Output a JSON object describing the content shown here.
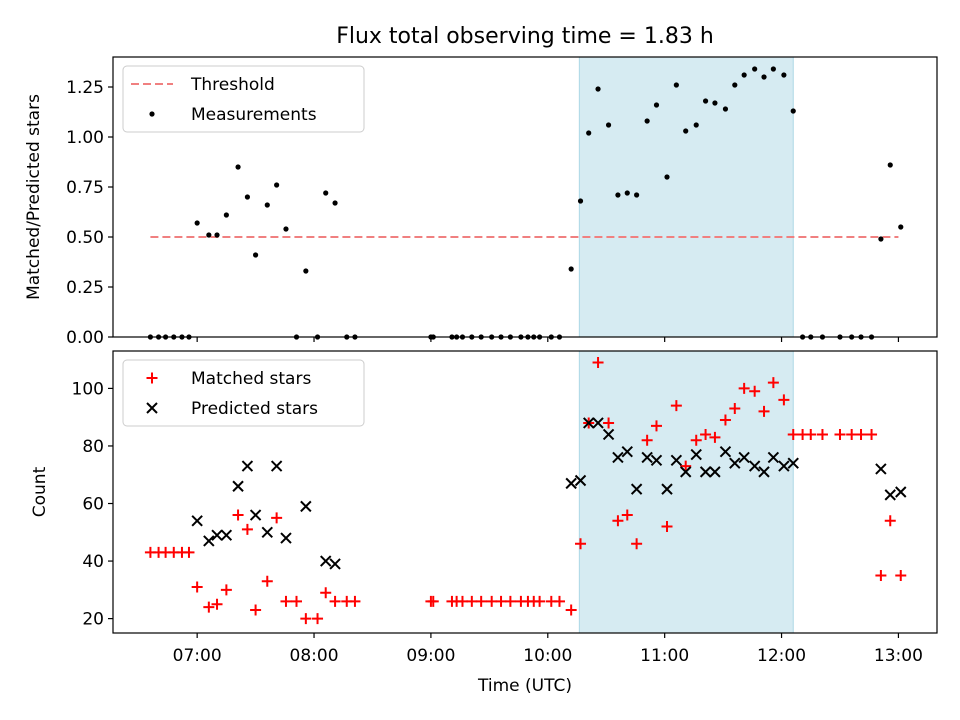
{
  "figure": {
    "title": "Flux total observing time = 1.83 h",
    "xlabel": "Time (UTC)"
  },
  "colors": {
    "threshold": "#f08080",
    "measurements": "#000000",
    "matched": "#ff0000",
    "predicted": "#000000",
    "shade": "#add8e6"
  },
  "chart_data": [
    {
      "type": "scatter",
      "ylabel": "Matched/Predicted stars",
      "xlim_hours": [
        6.28,
        13.33
      ],
      "ylim": [
        0,
        1.4
      ],
      "yticks": [
        0,
        0.25,
        0.5,
        0.75,
        1.0,
        1.25
      ],
      "ytick_labels": [
        "0.00",
        "0.25",
        "0.50",
        "0.75",
        "1.00",
        "1.25"
      ],
      "xticks_hours": [
        7,
        8,
        9,
        10,
        11,
        12,
        13
      ],
      "shaded_interval_hours": [
        10.27,
        12.1
      ],
      "legend": {
        "placement": "upper left",
        "entries": [
          "Threshold",
          "Measurements"
        ]
      },
      "threshold": {
        "name": "Threshold",
        "y": 0.5,
        "x_hours": [
          6.6,
          13.0
        ]
      },
      "series": [
        {
          "name": "Measurements",
          "x_hours": [
            6.6,
            6.67,
            6.73,
            6.8,
            6.87,
            6.93,
            7.0,
            7.1,
            7.17,
            7.25,
            7.35,
            7.43,
            7.5,
            7.6,
            7.68,
            7.76,
            7.85,
            7.93,
            8.03,
            8.1,
            8.18,
            8.28,
            8.35,
            9.0,
            9.02,
            9.18,
            9.22,
            9.27,
            9.35,
            9.43,
            9.52,
            9.6,
            9.68,
            9.77,
            9.83,
            9.88,
            9.93,
            10.03,
            10.1,
            10.2,
            10.28,
            10.35,
            10.43,
            10.52,
            10.6,
            10.68,
            10.76,
            10.85,
            10.93,
            11.02,
            11.1,
            11.18,
            11.27,
            11.35,
            11.43,
            11.52,
            11.6,
            11.68,
            11.77,
            11.85,
            11.93,
            12.02,
            12.1,
            12.18,
            12.25,
            12.35,
            12.5,
            12.6,
            12.68,
            12.77,
            12.85,
            12.93,
            13.02
          ],
          "y": [
            0,
            0,
            0,
            0,
            0,
            0,
            0.57,
            0.51,
            0.51,
            0.61,
            0.85,
            0.7,
            0.41,
            0.66,
            0.76,
            0.54,
            0,
            0.33,
            0,
            0.72,
            0.67,
            0,
            0,
            0,
            0,
            0,
            0,
            0,
            0,
            0,
            0,
            0,
            0,
            0,
            0,
            0,
            0,
            0,
            0,
            0.34,
            0.68,
            1.02,
            1.24,
            1.06,
            0.71,
            0.72,
            0.71,
            1.08,
            1.16,
            0.8,
            1.26,
            1.03,
            1.06,
            1.18,
            1.17,
            1.14,
            1.26,
            1.31,
            1.34,
            1.3,
            1.34,
            1.31,
            1.13,
            0,
            0,
            0,
            0,
            0,
            0,
            0,
            0.49,
            0.86,
            0.55
          ]
        }
      ]
    },
    {
      "type": "scatter",
      "ylabel": "Count",
      "xlim_hours": [
        6.28,
        13.33
      ],
      "ylim": [
        15,
        113
      ],
      "yticks": [
        20,
        40,
        60,
        80,
        100
      ],
      "ytick_labels": [
        "20",
        "40",
        "60",
        "80",
        "100"
      ],
      "xticks_hours": [
        7,
        8,
        9,
        10,
        11,
        12,
        13
      ],
      "xtick_labels": [
        "07:00",
        "08:00",
        "09:00",
        "10:00",
        "11:00",
        "12:00",
        "13:00"
      ],
      "shaded_interval_hours": [
        10.27,
        12.1
      ],
      "legend": {
        "placement": "upper left",
        "entries": [
          "Matched stars",
          "Predicted stars"
        ]
      },
      "series": [
        {
          "name": "Matched stars",
          "marker": "plus",
          "x_hours": [
            6.6,
            6.67,
            6.73,
            6.8,
            6.87,
            6.93,
            7.0,
            7.1,
            7.17,
            7.25,
            7.35,
            7.43,
            7.5,
            7.6,
            7.68,
            7.76,
            7.85,
            7.93,
            8.03,
            8.1,
            8.18,
            8.28,
            8.35,
            9.0,
            9.02,
            9.18,
            9.22,
            9.27,
            9.35,
            9.43,
            9.52,
            9.6,
            9.68,
            9.77,
            9.83,
            9.88,
            9.93,
            10.03,
            10.1,
            10.2,
            10.28,
            10.35,
            10.43,
            10.52,
            10.6,
            10.68,
            10.76,
            10.85,
            10.93,
            11.02,
            11.1,
            11.18,
            11.27,
            11.35,
            11.43,
            11.52,
            11.6,
            11.68,
            11.77,
            11.85,
            11.93,
            12.02,
            12.1,
            12.18,
            12.25,
            12.35,
            12.5,
            12.6,
            12.68,
            12.77,
            12.85,
            12.93,
            13.02
          ],
          "y": [
            43,
            43,
            43,
            43,
            43,
            43,
            31,
            24,
            25,
            30,
            56,
            51,
            23,
            33,
            55,
            26,
            26,
            20,
            20,
            29,
            26,
            26,
            26,
            26,
            26,
            26,
            26,
            26,
            26,
            26,
            26,
            26,
            26,
            26,
            26,
            26,
            26,
            26,
            26,
            23,
            46,
            88,
            109,
            88,
            54,
            56,
            46,
            82,
            87,
            52,
            94,
            73,
            82,
            84,
            83,
            89,
            93,
            100,
            99,
            92,
            102,
            96,
            84,
            84,
            84,
            84,
            84,
            84,
            84,
            84,
            35,
            54,
            35
          ]
        },
        {
          "name": "Predicted stars",
          "marker": "x",
          "x_hours": [
            7.0,
            7.1,
            7.17,
            7.25,
            7.35,
            7.43,
            7.5,
            7.6,
            7.68,
            7.76,
            7.93,
            8.1,
            8.18,
            10.2,
            10.28,
            10.35,
            10.43,
            10.52,
            10.6,
            10.68,
            10.76,
            10.85,
            10.93,
            11.02,
            11.1,
            11.18,
            11.27,
            11.35,
            11.43,
            11.52,
            11.6,
            11.68,
            11.77,
            11.85,
            11.93,
            12.02,
            12.1,
            12.85,
            12.93,
            13.02
          ],
          "y": [
            54,
            47,
            49,
            49,
            66,
            73,
            56,
            50,
            73,
            48,
            59,
            40,
            39,
            67,
            68,
            88,
            88,
            84,
            76,
            78,
            65,
            76,
            75,
            65,
            75,
            71,
            77,
            71,
            71,
            78,
            74,
            76,
            73,
            71,
            76,
            73,
            74,
            72,
            63,
            64
          ]
        }
      ]
    }
  ]
}
